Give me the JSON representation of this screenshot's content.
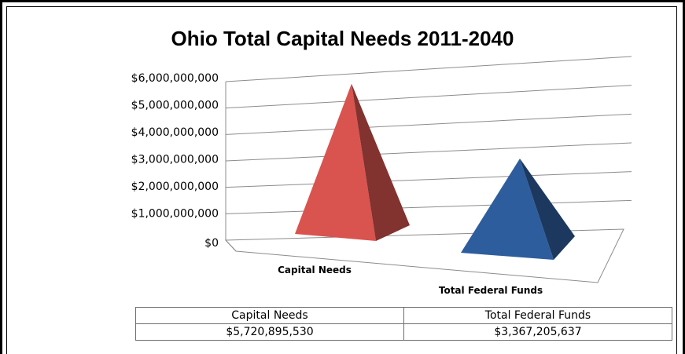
{
  "chart_data": {
    "type": "bar",
    "style": "3d-pyramid",
    "title": "Ohio Total Capital Needs 2011-2040",
    "categories": [
      "Capital Needs",
      "Total Federal Funds"
    ],
    "values": [
      5720895530,
      3367205637
    ],
    "colors": [
      "#d9534f",
      "#2e5d9e"
    ],
    "ylim": [
      0,
      6000000000
    ],
    "yticks": [
      "$0",
      "$1,000,000,000",
      "$2,000,000,000",
      "$3,000,000,000",
      "$4,000,000,000",
      "$5,000,000,000",
      "$6,000,000,000"
    ],
    "grid": true,
    "legend": "none",
    "table": {
      "headers": [
        "Capital Needs",
        "Total Federal Funds"
      ],
      "values": [
        "$5,720,895,530",
        "$3,367,205,637"
      ]
    }
  }
}
